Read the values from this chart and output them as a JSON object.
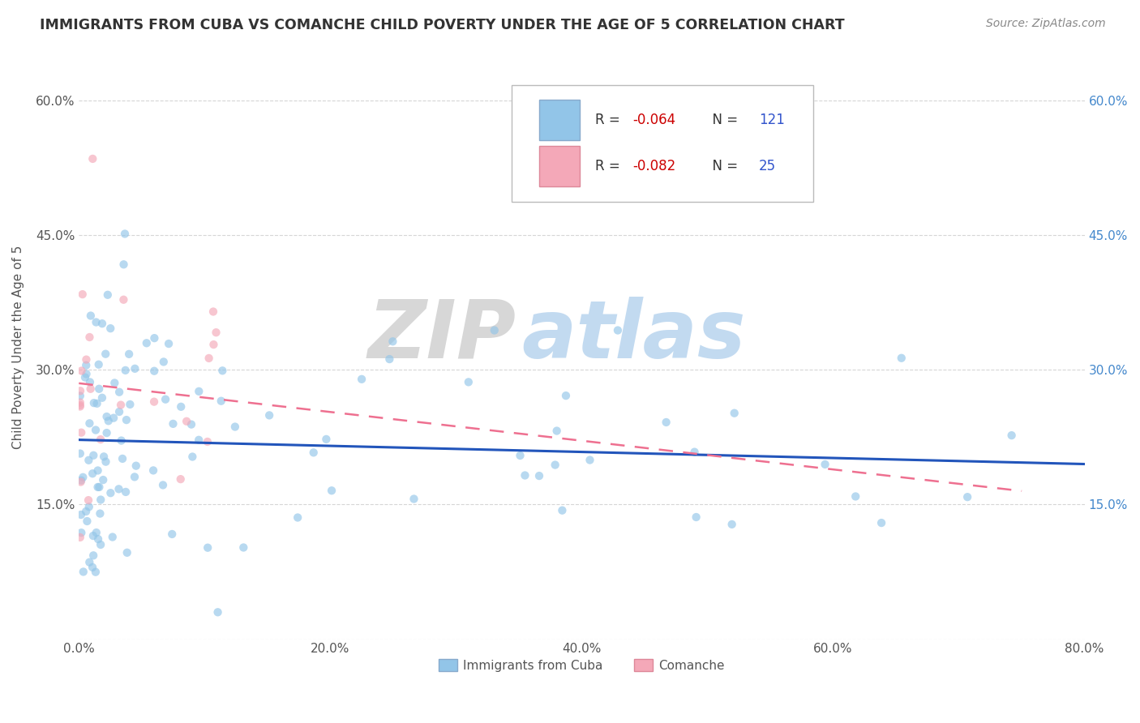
{
  "title": "IMMIGRANTS FROM CUBA VS COMANCHE CHILD POVERTY UNDER THE AGE OF 5 CORRELATION CHART",
  "source_text": "Source: ZipAtlas.com",
  "ylabel": "Child Poverty Under the Age of 5",
  "xlim": [
    0.0,
    0.8
  ],
  "ylim": [
    0.0,
    0.65
  ],
  "xtick_labels": [
    "0.0%",
    "20.0%",
    "40.0%",
    "60.0%",
    "80.0%"
  ],
  "xtick_vals": [
    0.0,
    0.2,
    0.4,
    0.6,
    0.8
  ],
  "ytick_labels_left": [
    "",
    "15.0%",
    "30.0%",
    "45.0%",
    "60.0%"
  ],
  "ytick_vals": [
    0.0,
    0.15,
    0.3,
    0.45,
    0.6
  ],
  "right_ytick_labels": [
    "15.0%",
    "30.0%",
    "45.0%",
    "60.0%"
  ],
  "right_ytick_vals": [
    0.15,
    0.3,
    0.45,
    0.6
  ],
  "legend_bottom": [
    "Immigrants from Cuba",
    "Comanche"
  ],
  "blue_line_x": [
    0.0,
    0.8
  ],
  "blue_line_y": [
    0.222,
    0.195
  ],
  "pink_line_x": [
    0.0,
    0.75
  ],
  "pink_line_y": [
    0.285,
    0.165
  ],
  "scatter_alpha": 0.65,
  "scatter_size": 55,
  "blue_color": "#92C5E8",
  "pink_color": "#F4A8B8",
  "blue_line_color": "#2255BB",
  "pink_line_color": "#EE7090",
  "watermark_zip_color": "#C8C8C8",
  "watermark_atlas_color": "#B0CCE8",
  "grid_color": "#CCCCCC",
  "background_color": "#FFFFFF",
  "title_color": "#333333",
  "legend_r_color": "#CC0000",
  "legend_n_color": "#3355CC"
}
